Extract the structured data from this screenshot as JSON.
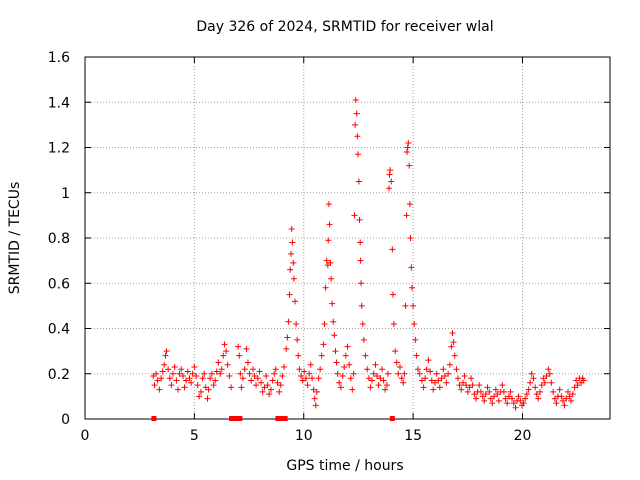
{
  "chart_data": {
    "type": "scatter",
    "title": "Day 326 of 2024, SRMTID for receiver wlal",
    "xlabel": "GPS time / hours",
    "ylabel": "SRMTID / TECUs",
    "xlim": [
      0,
      24
    ],
    "ylim": [
      0,
      1.6
    ],
    "xticks": [
      0,
      5,
      10,
      15,
      20
    ],
    "yticks": [
      0,
      0.2,
      0.4,
      0.6,
      0.8,
      1,
      1.2,
      1.4,
      1.6
    ],
    "grid": true,
    "colors": {
      "marker": "#ff0000",
      "grid": "#a0a0a0",
      "axis": "#000000"
    },
    "marker": "plus",
    "series": [
      {
        "name": "SRMTID",
        "points": [
          [
            3.12,
            0.19
          ],
          [
            3.18,
            0.15
          ],
          [
            3.25,
            0.2
          ],
          [
            3.32,
            0.17
          ],
          [
            3.4,
            0.13
          ],
          [
            3.48,
            0.18
          ],
          [
            3.55,
            0.21
          ],
          [
            3.62,
            0.24
          ],
          [
            3.68,
            0.28
          ],
          [
            3.73,
            0.3
          ],
          [
            3.8,
            0.22
          ],
          [
            3.88,
            0.18
          ],
          [
            3.95,
            0.15
          ],
          [
            4.02,
            0.2
          ],
          [
            4.1,
            0.23
          ],
          [
            4.18,
            0.17
          ],
          [
            4.25,
            0.13
          ],
          [
            4.32,
            0.2
          ],
          [
            4.4,
            0.22
          ],
          [
            4.48,
            0.19
          ],
          [
            4.55,
            0.14
          ],
          [
            4.62,
            0.17
          ],
          [
            4.7,
            0.21
          ],
          [
            4.78,
            0.18
          ],
          [
            4.85,
            0.16
          ],
          [
            4.92,
            0.2
          ],
          [
            5.0,
            0.23
          ],
          [
            5.08,
            0.19
          ],
          [
            5.15,
            0.15
          ],
          [
            5.22,
            0.1
          ],
          [
            5.3,
            0.12
          ],
          [
            5.38,
            0.18
          ],
          [
            5.45,
            0.2
          ],
          [
            5.52,
            0.14
          ],
          [
            5.6,
            0.09
          ],
          [
            5.65,
            0.13
          ],
          [
            5.72,
            0.18
          ],
          [
            5.8,
            0.2
          ],
          [
            5.88,
            0.15
          ],
          [
            5.95,
            0.17
          ],
          [
            6.02,
            0.21
          ],
          [
            6.1,
            0.25
          ],
          [
            6.18,
            0.2
          ],
          [
            6.25,
            0.22
          ],
          [
            6.32,
            0.28
          ],
          [
            6.38,
            0.33
          ],
          [
            6.45,
            0.3
          ],
          [
            6.52,
            0.24
          ],
          [
            6.6,
            0.19
          ],
          [
            6.68,
            0.14
          ],
          [
            7.0,
            0.32
          ],
          [
            7.05,
            0.28
          ],
          [
            7.1,
            0.2
          ],
          [
            7.15,
            0.14
          ],
          [
            7.22,
            0.18
          ],
          [
            7.3,
            0.22
          ],
          [
            7.38,
            0.31
          ],
          [
            7.45,
            0.25
          ],
          [
            7.52,
            0.2
          ],
          [
            7.6,
            0.17
          ],
          [
            7.68,
            0.22
          ],
          [
            7.75,
            0.19
          ],
          [
            7.82,
            0.15
          ],
          [
            7.9,
            0.18
          ],
          [
            7.98,
            0.21
          ],
          [
            8.05,
            0.16
          ],
          [
            8.12,
            0.12
          ],
          [
            8.2,
            0.14
          ],
          [
            8.28,
            0.19
          ],
          [
            8.35,
            0.15
          ],
          [
            8.42,
            0.11
          ],
          [
            8.5,
            0.13
          ],
          [
            8.58,
            0.17
          ],
          [
            8.65,
            0.2
          ],
          [
            8.72,
            0.22
          ],
          [
            8.8,
            0.16
          ],
          [
            8.88,
            0.12
          ],
          [
            8.95,
            0.15
          ],
          [
            9.02,
            0.19
          ],
          [
            9.1,
            0.23
          ],
          [
            9.2,
            0.31
          ],
          [
            9.25,
            0.36
          ],
          [
            9.3,
            0.43
          ],
          [
            9.35,
            0.55
          ],
          [
            9.38,
            0.66
          ],
          [
            9.42,
            0.73
          ],
          [
            9.45,
            0.84
          ],
          [
            9.48,
            0.78
          ],
          [
            9.52,
            0.69
          ],
          [
            9.55,
            0.62
          ],
          [
            9.6,
            0.52
          ],
          [
            9.65,
            0.42
          ],
          [
            9.7,
            0.35
          ],
          [
            9.75,
            0.28
          ],
          [
            9.8,
            0.22
          ],
          [
            9.88,
            0.19
          ],
          [
            9.95,
            0.17
          ],
          [
            10.02,
            0.21
          ],
          [
            10.1,
            0.18
          ],
          [
            10.18,
            0.15
          ],
          [
            10.25,
            0.2
          ],
          [
            10.32,
            0.24
          ],
          [
            10.38,
            0.18
          ],
          [
            10.45,
            0.13
          ],
          [
            10.5,
            0.09
          ],
          [
            10.55,
            0.06
          ],
          [
            10.6,
            0.12
          ],
          [
            10.68,
            0.18
          ],
          [
            10.75,
            0.22
          ],
          [
            10.82,
            0.28
          ],
          [
            10.9,
            0.33
          ],
          [
            10.95,
            0.42
          ],
          [
            11.0,
            0.58
          ],
          [
            11.05,
            0.7
          ],
          [
            11.1,
            0.68
          ],
          [
            11.12,
            0.79
          ],
          [
            11.15,
            0.95
          ],
          [
            11.18,
            0.86
          ],
          [
            11.22,
            0.69
          ],
          [
            11.25,
            0.62
          ],
          [
            11.3,
            0.51
          ],
          [
            11.35,
            0.43
          ],
          [
            11.4,
            0.37
          ],
          [
            11.45,
            0.3
          ],
          [
            11.5,
            0.25
          ],
          [
            11.55,
            0.2
          ],
          [
            11.62,
            0.16
          ],
          [
            11.7,
            0.14
          ],
          [
            11.78,
            0.19
          ],
          [
            11.85,
            0.23
          ],
          [
            11.92,
            0.28
          ],
          [
            12.0,
            0.32
          ],
          [
            12.08,
            0.24
          ],
          [
            12.15,
            0.18
          ],
          [
            12.22,
            0.13
          ],
          [
            12.28,
            0.2
          ],
          [
            12.32,
            0.9
          ],
          [
            12.35,
            1.3
          ],
          [
            12.38,
            1.41
          ],
          [
            12.42,
            1.35
          ],
          [
            12.45,
            1.25
          ],
          [
            12.48,
            1.17
          ],
          [
            12.52,
            1.05
          ],
          [
            12.55,
            0.88
          ],
          [
            12.58,
            0.78
          ],
          [
            12.6,
            0.7
          ],
          [
            12.62,
            0.6
          ],
          [
            12.65,
            0.5
          ],
          [
            12.7,
            0.42
          ],
          [
            12.75,
            0.35
          ],
          [
            12.82,
            0.28
          ],
          [
            12.9,
            0.22
          ],
          [
            12.98,
            0.18
          ],
          [
            13.05,
            0.14
          ],
          [
            13.12,
            0.17
          ],
          [
            13.2,
            0.2
          ],
          [
            13.28,
            0.24
          ],
          [
            13.35,
            0.19
          ],
          [
            13.42,
            0.15
          ],
          [
            13.5,
            0.18
          ],
          [
            13.58,
            0.22
          ],
          [
            13.65,
            0.17
          ],
          [
            13.72,
            0.13
          ],
          [
            13.8,
            0.15
          ],
          [
            13.85,
            0.2
          ],
          [
            13.9,
            1.02
          ],
          [
            13.92,
            1.08
          ],
          [
            13.95,
            1.1
          ],
          [
            14.0,
            1.05
          ],
          [
            14.05,
            0.75
          ],
          [
            14.08,
            0.55
          ],
          [
            14.12,
            0.42
          ],
          [
            14.18,
            0.3
          ],
          [
            14.25,
            0.25
          ],
          [
            14.32,
            0.2
          ],
          [
            14.4,
            0.23
          ],
          [
            14.48,
            0.18
          ],
          [
            14.55,
            0.16
          ],
          [
            14.6,
            0.2
          ],
          [
            14.65,
            0.5
          ],
          [
            14.7,
            0.9
          ],
          [
            14.72,
            1.18
          ],
          [
            14.75,
            1.2
          ],
          [
            14.78,
            1.22
          ],
          [
            14.82,
            1.12
          ],
          [
            14.85,
            0.95
          ],
          [
            14.88,
            0.8
          ],
          [
            14.92,
            0.67
          ],
          [
            14.95,
            0.58
          ],
          [
            15.0,
            0.5
          ],
          [
            15.05,
            0.42
          ],
          [
            15.1,
            0.35
          ],
          [
            15.15,
            0.28
          ],
          [
            15.22,
            0.22
          ],
          [
            15.3,
            0.2
          ],
          [
            15.4,
            0.17
          ],
          [
            15.48,
            0.14
          ],
          [
            15.55,
            0.18
          ],
          [
            15.62,
            0.22
          ],
          [
            15.7,
            0.26
          ],
          [
            15.78,
            0.21
          ],
          [
            15.85,
            0.17
          ],
          [
            15.92,
            0.13
          ],
          [
            16.0,
            0.16
          ],
          [
            16.08,
            0.2
          ],
          [
            16.15,
            0.17
          ],
          [
            16.22,
            0.14
          ],
          [
            16.3,
            0.18
          ],
          [
            16.38,
            0.22
          ],
          [
            16.45,
            0.19
          ],
          [
            16.52,
            0.16
          ],
          [
            16.6,
            0.2
          ],
          [
            16.68,
            0.24
          ],
          [
            16.75,
            0.32
          ],
          [
            16.8,
            0.38
          ],
          [
            16.85,
            0.34
          ],
          [
            16.9,
            0.28
          ],
          [
            16.98,
            0.22
          ],
          [
            17.05,
            0.18
          ],
          [
            17.12,
            0.15
          ],
          [
            17.2,
            0.13
          ],
          [
            17.28,
            0.16
          ],
          [
            17.35,
            0.19
          ],
          [
            17.42,
            0.15
          ],
          [
            17.5,
            0.12
          ],
          [
            17.58,
            0.14
          ],
          [
            17.65,
            0.18
          ],
          [
            17.72,
            0.15
          ],
          [
            17.8,
            0.11
          ],
          [
            17.88,
            0.09
          ],
          [
            17.95,
            0.12
          ],
          [
            18.02,
            0.15
          ],
          [
            18.1,
            0.12
          ],
          [
            18.18,
            0.1
          ],
          [
            18.25,
            0.08
          ],
          [
            18.32,
            0.11
          ],
          [
            18.4,
            0.14
          ],
          [
            18.48,
            0.12
          ],
          [
            18.55,
            0.09
          ],
          [
            18.62,
            0.07
          ],
          [
            18.7,
            0.1
          ],
          [
            18.78,
            0.13
          ],
          [
            18.85,
            0.11
          ],
          [
            18.92,
            0.08
          ],
          [
            19.0,
            0.12
          ],
          [
            19.08,
            0.15
          ],
          [
            19.15,
            0.12
          ],
          [
            19.22,
            0.09
          ],
          [
            19.3,
            0.07
          ],
          [
            19.38,
            0.1
          ],
          [
            19.45,
            0.12
          ],
          [
            19.52,
            0.09
          ],
          [
            19.6,
            0.07
          ],
          [
            19.68,
            0.05
          ],
          [
            19.75,
            0.08
          ],
          [
            19.82,
            0.1
          ],
          [
            19.9,
            0.08
          ],
          [
            19.98,
            0.06
          ],
          [
            20.05,
            0.07
          ],
          [
            20.12,
            0.09
          ],
          [
            20.2,
            0.11
          ],
          [
            20.28,
            0.13
          ],
          [
            20.35,
            0.16
          ],
          [
            20.42,
            0.2
          ],
          [
            20.5,
            0.18
          ],
          [
            20.58,
            0.14
          ],
          [
            20.65,
            0.11
          ],
          [
            20.72,
            0.09
          ],
          [
            20.8,
            0.12
          ],
          [
            20.88,
            0.15
          ],
          [
            20.95,
            0.18
          ],
          [
            21.02,
            0.16
          ],
          [
            21.1,
            0.19
          ],
          [
            21.18,
            0.22
          ],
          [
            21.25,
            0.2
          ],
          [
            21.32,
            0.16
          ],
          [
            21.4,
            0.12
          ],
          [
            21.48,
            0.09
          ],
          [
            21.55,
            0.07
          ],
          [
            21.62,
            0.1
          ],
          [
            21.7,
            0.13
          ],
          [
            21.78,
            0.1
          ],
          [
            21.85,
            0.08
          ],
          [
            21.92,
            0.06
          ],
          [
            22.0,
            0.09
          ],
          [
            22.08,
            0.12
          ],
          [
            22.15,
            0.1
          ],
          [
            22.22,
            0.08
          ],
          [
            22.3,
            0.11
          ],
          [
            22.38,
            0.14
          ],
          [
            22.45,
            0.17
          ],
          [
            22.52,
            0.15
          ],
          [
            22.6,
            0.18
          ],
          [
            22.68,
            0.16
          ],
          [
            22.75,
            0.18
          ],
          [
            22.8,
            0.17
          ]
        ]
      }
    ],
    "zero_markers": [
      3.15,
      6.7,
      6.78,
      6.85,
      6.92,
      7.0,
      7.08,
      8.82,
      8.92,
      9.1,
      9.15,
      14.05
    ]
  }
}
